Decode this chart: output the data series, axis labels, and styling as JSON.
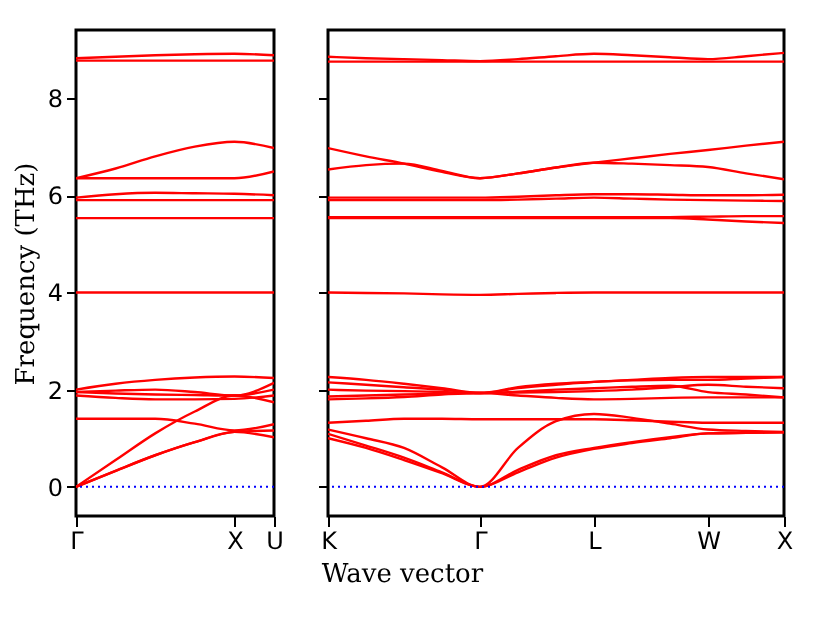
{
  "chart_data": [
    {
      "type": "line",
      "ylabel": "Frequency (THz)",
      "xlabel": "Wave vector",
      "categories": [
        "Γ",
        null,
        null,
        null,
        "X",
        "U"
      ],
      "ylim": [
        -0.6,
        9.4
      ],
      "yticks": [
        0,
        2,
        4,
        6,
        8
      ],
      "grid": false,
      "legend": false,
      "ref_lines": [
        {
          "axis": "y",
          "value": 0,
          "color": "#0000ff",
          "line_style": "dotted"
        }
      ],
      "series": [
        {
          "color": "#ff0000",
          "values": [
            0,
            0.33,
            0.65,
            0.92,
            1.13,
            1.02
          ]
        },
        {
          "color": "#ff0000",
          "values": [
            0,
            0.33,
            0.65,
            0.92,
            1.13,
            1.16
          ]
        },
        {
          "color": "#ff0000",
          "values": [
            0,
            0.55,
            1.1,
            1.55,
            1.88,
            1.74
          ]
        },
        {
          "color": "#ff0000",
          "values": [
            1.4,
            1.4,
            1.4,
            1.3,
            1.16,
            1.29
          ]
        },
        {
          "color": "#ff0000",
          "values": [
            1.88,
            1.83,
            1.8,
            1.8,
            1.81,
            1.88
          ]
        },
        {
          "color": "#ff0000",
          "values": [
            1.95,
            1.98,
            2.0,
            1.95,
            1.88,
            2.14
          ]
        },
        {
          "color": "#ff0000",
          "values": [
            2.0,
            2.12,
            2.2,
            2.25,
            2.27,
            2.24
          ]
        },
        {
          "color": "#ff0000",
          "values": [
            1.95,
            1.92,
            1.9,
            1.89,
            1.88,
            2.0
          ]
        },
        {
          "color": "#ff0000",
          "values": [
            4.0,
            4.0,
            4.0,
            4.0,
            4.0,
            4.0
          ]
        },
        {
          "color": "#ff0000",
          "values": [
            5.53,
            5.53,
            5.53,
            5.53,
            5.53,
            5.53
          ]
        },
        {
          "color": "#ff0000",
          "values": [
            5.9,
            5.9,
            5.9,
            5.9,
            5.9,
            5.9
          ]
        },
        {
          "color": "#ff0000",
          "values": [
            5.95,
            6.02,
            6.05,
            6.04,
            6.03,
            6.0
          ]
        },
        {
          "color": "#ff0000",
          "values": [
            6.35,
            6.35,
            6.35,
            6.35,
            6.35,
            6.49
          ]
        },
        {
          "color": "#ff0000",
          "values": [
            6.35,
            6.55,
            6.8,
            7.0,
            7.1,
            6.97
          ]
        },
        {
          "color": "#ff0000",
          "values": [
            8.77,
            8.77,
            8.77,
            8.77,
            8.77,
            8.77
          ]
        },
        {
          "color": "#ff0000",
          "values": [
            8.82,
            8.85,
            8.88,
            8.9,
            8.91,
            8.88
          ]
        }
      ]
    },
    {
      "type": "line",
      "categories": [
        "K",
        null,
        null,
        null,
        "Γ",
        null,
        null,
        "L",
        null,
        null,
        "W",
        null,
        "X"
      ],
      "ylim": [
        -0.6,
        9.4
      ],
      "yticks": [
        0,
        2,
        4,
        6,
        8
      ],
      "tick_labels": "x",
      "grid": false,
      "legend": false,
      "ref_lines": [
        {
          "axis": "y",
          "value": 0,
          "color": "#0000ff",
          "line_style": "dotted"
        }
      ],
      "series": [
        {
          "color": "#ff0000",
          "values": [
            1.0,
            0.8,
            0.55,
            0.28,
            0,
            0.3,
            0.6,
            0.78,
            0.9,
            1.0,
            1.1,
            1.11,
            1.12
          ]
        },
        {
          "color": "#ff0000",
          "values": [
            1.09,
            0.85,
            0.6,
            0.3,
            0,
            0.35,
            0.65,
            0.8,
            0.92,
            1.02,
            1.1,
            1.11,
            1.12
          ]
        },
        {
          "color": "#ff0000",
          "values": [
            1.18,
            1.0,
            0.8,
            0.4,
            0,
            0.8,
            1.35,
            1.5,
            1.42,
            1.3,
            1.18,
            1.15,
            1.13
          ]
        },
        {
          "color": "#ff0000",
          "values": [
            1.32,
            1.36,
            1.4,
            1.4,
            1.39,
            1.39,
            1.39,
            1.39,
            1.37,
            1.34,
            1.32,
            1.32,
            1.32
          ]
        },
        {
          "color": "#ff0000",
          "values": [
            1.8,
            1.82,
            1.85,
            1.9,
            1.93,
            1.88,
            1.83,
            1.8,
            1.81,
            1.83,
            1.84,
            1.84,
            1.84
          ]
        },
        {
          "color": "#ff0000",
          "values": [
            1.86,
            1.88,
            1.9,
            1.92,
            1.93,
            1.94,
            1.95,
            1.97,
            2.0,
            2.05,
            2.1,
            2.06,
            2.03
          ]
        },
        {
          "color": "#ff0000",
          "values": [
            2.0,
            1.98,
            1.97,
            1.95,
            1.93,
            1.96,
            2.0,
            2.03,
            2.06,
            2.08,
            1.95,
            1.9,
            1.84
          ]
        },
        {
          "color": "#ff0000",
          "values": [
            2.15,
            2.1,
            2.05,
            2.0,
            1.93,
            2.03,
            2.1,
            2.16,
            2.19,
            2.2,
            2.2,
            2.23,
            2.26
          ]
        },
        {
          "color": "#ff0000",
          "values": [
            2.26,
            2.2,
            2.12,
            2.03,
            1.93,
            2.05,
            2.12,
            2.16,
            2.2,
            2.24,
            2.26,
            2.26,
            2.26
          ]
        },
        {
          "color": "#ff0000",
          "values": [
            4.0,
            3.99,
            3.98,
            3.96,
            3.95,
            3.97,
            3.99,
            4.0,
            4.0,
            4.0,
            4.0,
            4.0,
            4.0
          ]
        },
        {
          "color": "#ff0000",
          "values": [
            5.53,
            5.53,
            5.53,
            5.53,
            5.53,
            5.53,
            5.53,
            5.53,
            5.53,
            5.53,
            5.5,
            5.46,
            5.43
          ]
        },
        {
          "color": "#ff0000",
          "values": [
            5.55,
            5.55,
            5.55,
            5.55,
            5.55,
            5.55,
            5.55,
            5.55,
            5.55,
            5.55,
            5.56,
            5.57,
            5.57
          ]
        },
        {
          "color": "#ff0000",
          "values": [
            5.9,
            5.9,
            5.9,
            5.9,
            5.9,
            5.91,
            5.93,
            5.95,
            5.93,
            5.91,
            5.9,
            5.89,
            5.88
          ]
        },
        {
          "color": "#ff0000",
          "values": [
            5.95,
            5.95,
            5.95,
            5.95,
            5.95,
            5.97,
            6.0,
            6.02,
            6.02,
            6.01,
            6.0,
            6.0,
            6.01
          ]
        },
        {
          "color": "#ff0000",
          "values": [
            6.97,
            6.8,
            6.65,
            6.48,
            6.35,
            6.45,
            6.57,
            6.67,
            6.76,
            6.85,
            6.93,
            7.02,
            7.1
          ]
        },
        {
          "color": "#ff0000",
          "values": [
            6.53,
            6.62,
            6.65,
            6.5,
            6.35,
            6.45,
            6.57,
            6.67,
            6.65,
            6.62,
            6.58,
            6.45,
            6.33
          ]
        },
        {
          "color": "#ff0000",
          "values": [
            8.75,
            8.75,
            8.75,
            8.75,
            8.75,
            8.75,
            8.75,
            8.75,
            8.75,
            8.75,
            8.75,
            8.75,
            8.75
          ]
        },
        {
          "color": "#ff0000",
          "values": [
            8.85,
            8.82,
            8.8,
            8.78,
            8.76,
            8.8,
            8.86,
            8.91,
            8.88,
            8.84,
            8.8,
            8.86,
            8.93
          ]
        }
      ]
    }
  ]
}
